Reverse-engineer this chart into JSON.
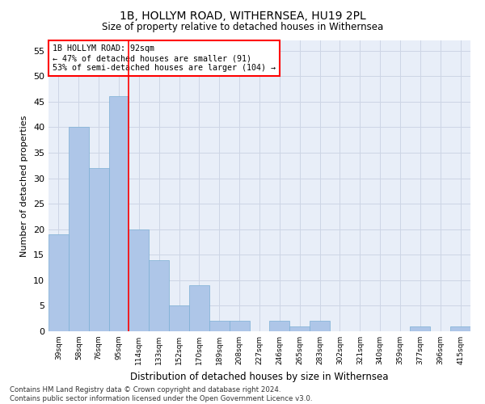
{
  "title": "1B, HOLLYM ROAD, WITHERNSEA, HU19 2PL",
  "subtitle": "Size of property relative to detached houses in Withernsea",
  "xlabel": "Distribution of detached houses by size in Withernsea",
  "ylabel": "Number of detached properties",
  "categories": [
    "39sqm",
    "58sqm",
    "76sqm",
    "95sqm",
    "114sqm",
    "133sqm",
    "152sqm",
    "170sqm",
    "189sqm",
    "208sqm",
    "227sqm",
    "246sqm",
    "265sqm",
    "283sqm",
    "302sqm",
    "321sqm",
    "340sqm",
    "359sqm",
    "377sqm",
    "396sqm",
    "415sqm"
  ],
  "values": [
    19,
    40,
    32,
    46,
    20,
    14,
    5,
    9,
    2,
    2,
    0,
    2,
    1,
    2,
    0,
    0,
    0,
    0,
    1,
    0,
    1
  ],
  "bar_color": "#aec6e8",
  "bar_edge_color": "#7bafd4",
  "property_line_x": 3.5,
  "annotation_line1": "1B HOLLYM ROAD: 92sqm",
  "annotation_line2": "← 47% of detached houses are smaller (91)",
  "annotation_line3": "53% of semi-detached houses are larger (104) →",
  "annotation_box_color": "white",
  "annotation_box_edge_color": "red",
  "vline_color": "red",
  "ylim": [
    0,
    57
  ],
  "yticks": [
    0,
    5,
    10,
    15,
    20,
    25,
    30,
    35,
    40,
    45,
    50,
    55
  ],
  "footer": "Contains HM Land Registry data © Crown copyright and database right 2024.\nContains public sector information licensed under the Open Government Licence v3.0.",
  "grid_color": "#cdd5e5",
  "background_color": "#e8eef8"
}
